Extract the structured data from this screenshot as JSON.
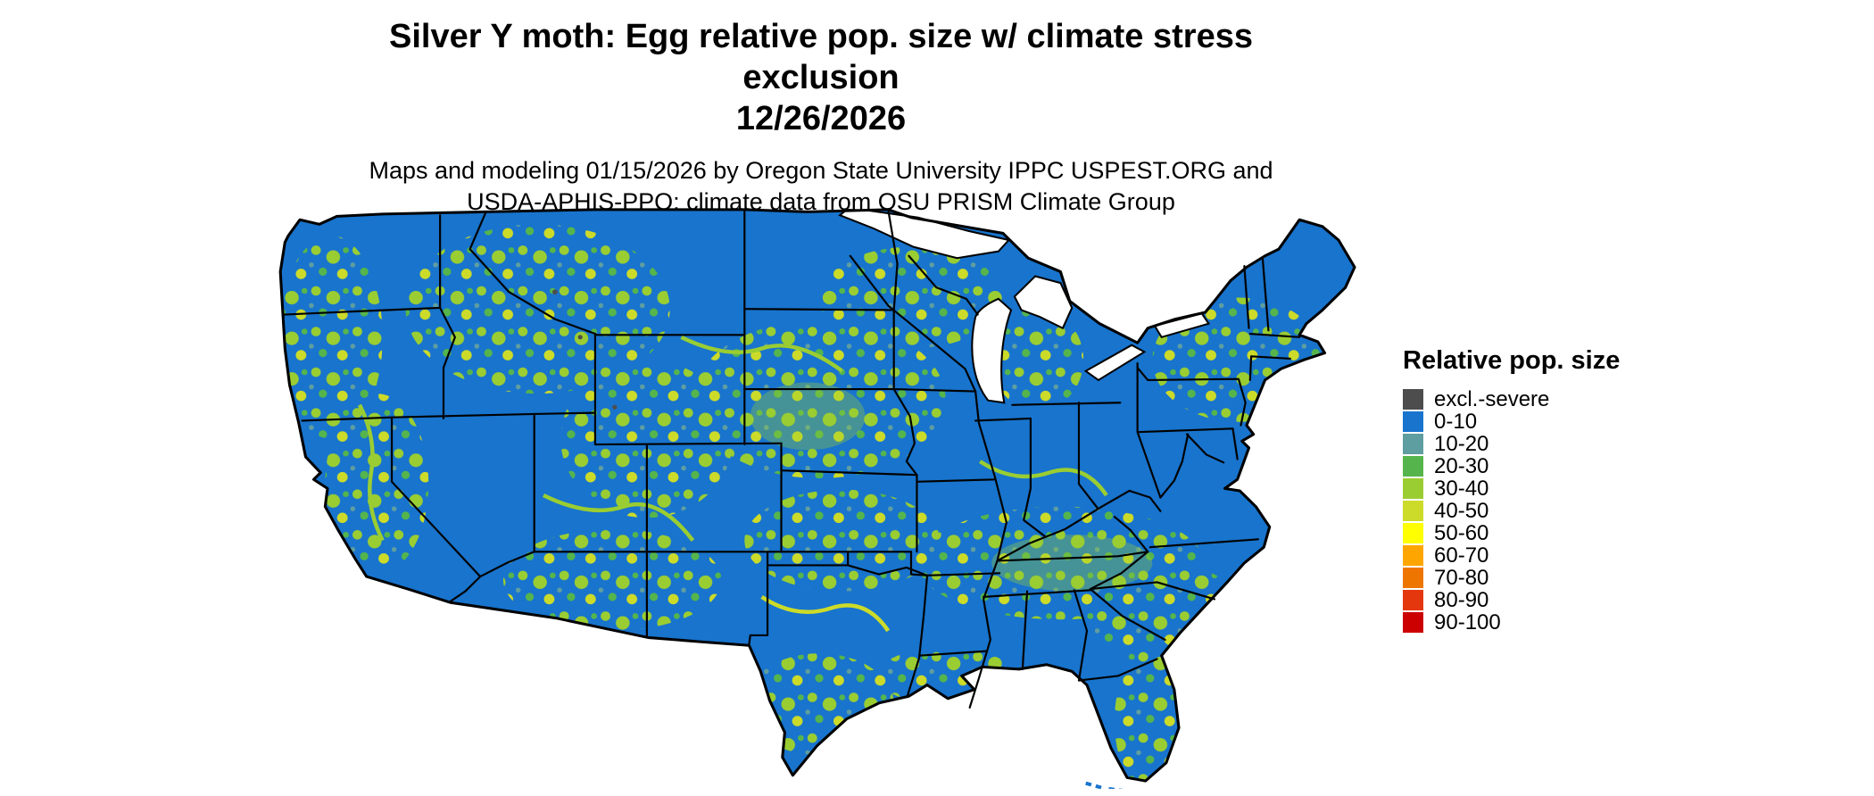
{
  "title": {
    "line1": "Silver Y moth: Egg relative pop. size w/ climate stress exclusion",
    "line2": "12/26/2026"
  },
  "subtitle": {
    "line1": "Maps and modeling 01/15/2026 by Oregon State University IPPC USPEST.ORG and",
    "line2": "USDA-APHIS-PPQ; climate data from OSU PRISM Climate Group"
  },
  "map": {
    "region": "Continental United States",
    "base_color": "#1874CD",
    "border_color": "#000000",
    "water_color": "#FFFFFF"
  },
  "legend": {
    "title": "Relative pop. size",
    "entries": [
      {
        "label": "excl.-severe",
        "color": "#4D4D4D"
      },
      {
        "label": "0-10",
        "color": "#1874CD"
      },
      {
        "label": "10-20",
        "color": "#5F9EA0"
      },
      {
        "label": "20-30",
        "color": "#55B54C"
      },
      {
        "label": "30-40",
        "color": "#9ACD32"
      },
      {
        "label": "40-50",
        "color": "#CCDB29"
      },
      {
        "label": "50-60",
        "color": "#FFFF00"
      },
      {
        "label": "60-70",
        "color": "#FFA500"
      },
      {
        "label": "70-80",
        "color": "#EE7600"
      },
      {
        "label": "80-90",
        "color": "#E5370E"
      },
      {
        "label": "90-100",
        "color": "#CC0000"
      }
    ]
  }
}
